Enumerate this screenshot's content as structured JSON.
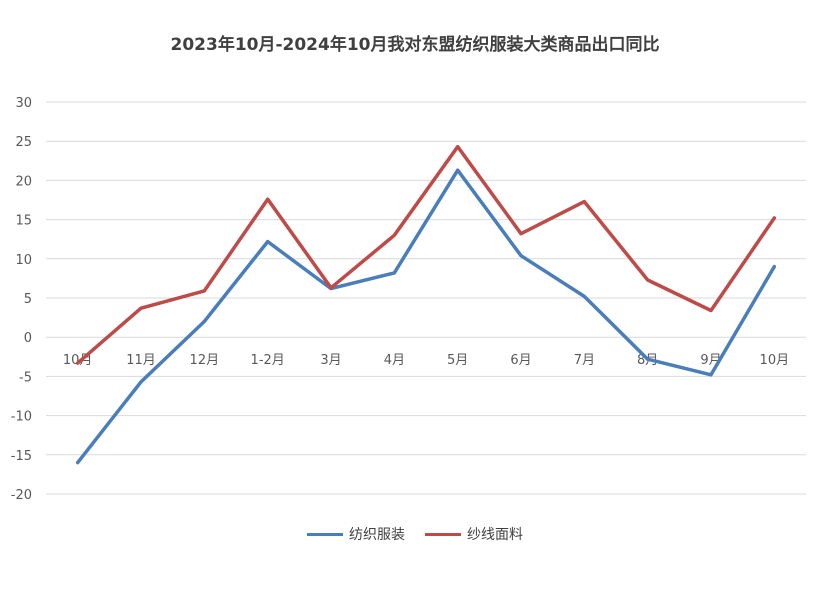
{
  "chart_data": {
    "type": "line",
    "title": "2023年10月-2024年10月我对东盟纺织服装大类商品出口同比",
    "categories": [
      "10月",
      "11月",
      "12月",
      "1-2月",
      "3月",
      "4月",
      "5月",
      "6月",
      "7月",
      "8月",
      "9月",
      "10月"
    ],
    "ylim": [
      -20,
      30
    ],
    "yticks": [
      30,
      25,
      20,
      15,
      10,
      5,
      0,
      -5,
      -10,
      -15,
      -20
    ],
    "grid": true,
    "legend_position": "bottom",
    "series": [
      {
        "name": "纺织服装",
        "color": "#4a7ebb",
        "values": [
          -16,
          -5.7,
          2,
          12.2,
          6.2,
          8.2,
          21.3,
          10.4,
          5.2,
          -2.8,
          -4.8,
          9
        ]
      },
      {
        "name": "纱线面料",
        "color": "#be4b48",
        "values": [
          -3.3,
          3.7,
          5.9,
          17.6,
          6.3,
          13,
          24.3,
          13.2,
          17.3,
          7.3,
          3.4,
          15.2
        ]
      }
    ]
  }
}
